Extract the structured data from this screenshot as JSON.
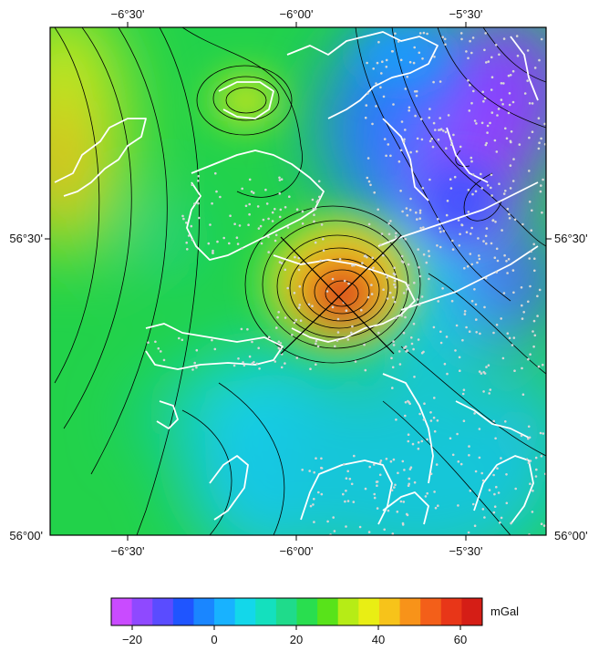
{
  "map": {
    "top_axis_labels": [
      "−6°30'",
      "−6°00'",
      "−5°30'"
    ],
    "bottom_axis_labels": [
      "−6°30'",
      "−6°00'",
      "−5°30'"
    ],
    "left_axis_labels": [
      "56°30'",
      "56°00'"
    ],
    "right_axis_labels": [
      "56°30'",
      "56°00'"
    ],
    "colors": {
      "low": "#c940ff",
      "mid_low": "#2f7bff",
      "mid": "#1ed6a8",
      "mid_high": "#3ee23a",
      "high": "#f3f21c",
      "very_high": "#d92c11",
      "coastline": "#ffffff",
      "stations": "#c9c9c9",
      "contours": "#000000"
    }
  },
  "colorbar": {
    "unit": "mGal",
    "tick_labels": [
      "−20",
      "0",
      "20",
      "40",
      "60"
    ],
    "colors": [
      "#c94bff",
      "#8f49ff",
      "#5a4cff",
      "#1f55ff",
      "#1a86ff",
      "#18b2ff",
      "#13d7ea",
      "#14e0be",
      "#1fdb8b",
      "#29de4f",
      "#58e31a",
      "#b6ec16",
      "#e9ee14",
      "#f7c31a",
      "#f89319",
      "#f35f19",
      "#e83618",
      "#d51e16"
    ]
  }
}
